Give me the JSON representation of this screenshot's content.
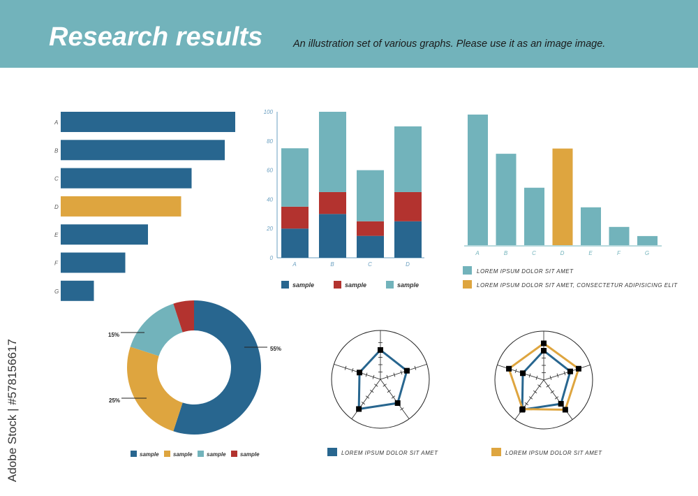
{
  "header": {
    "title": "Research results",
    "subtitle": "An illustration set of various graphs. Please use it as an image image."
  },
  "side_text": "Adobe Stock | #578156617",
  "colors": {
    "blue": "#28668f",
    "gold": "#dea53f",
    "teal": "#72b3bb",
    "red": "#b3332f"
  },
  "chart_data": [
    {
      "type": "bar",
      "orientation": "horizontal",
      "categories": [
        "A",
        "B",
        "C",
        "D",
        "E",
        "F",
        "G"
      ],
      "values": [
        100,
        94,
        75,
        69,
        50,
        37,
        19
      ],
      "highlight": "D"
    },
    {
      "type": "bar",
      "stacked": true,
      "categories": [
        "A",
        "B",
        "C",
        "D"
      ],
      "series": [
        {
          "name": "sample",
          "color": "blue",
          "values": [
            20,
            30,
            15,
            25
          ]
        },
        {
          "name": "sample",
          "color": "red",
          "values": [
            15,
            15,
            10,
            20
          ]
        },
        {
          "name": "sample",
          "color": "teal",
          "values": [
            40,
            55,
            35,
            45
          ]
        }
      ],
      "yticks": [
        "0",
        "20",
        "40",
        "60",
        "80",
        "100"
      ],
      "ylim": [
        0,
        100
      ]
    },
    {
      "type": "bar",
      "categories": [
        "A",
        "B",
        "C",
        "D",
        "E",
        "F",
        "G"
      ],
      "values": [
        100,
        70,
        44,
        74,
        29,
        14,
        7
      ],
      "colors": [
        "teal",
        "teal",
        "teal",
        "gold",
        "teal",
        "teal",
        "teal"
      ],
      "legend": [
        "LOREM IPSUM DOLOR SIT AMET",
        "LOREM IPSUM DOLOR SIT AMET, CONSECTETUR ADIPISICING ELIT"
      ]
    },
    {
      "type": "pie",
      "donut": true,
      "slices": [
        {
          "label": "sample",
          "value": 55,
          "text": "55%",
          "color": "blue"
        },
        {
          "label": "sample",
          "value": 25,
          "text": "25%",
          "color": "gold"
        },
        {
          "label": "sample",
          "value": 15,
          "text": "15%",
          "color": "teal"
        },
        {
          "label": "sample",
          "value": 5,
          "text": "",
          "color": "red"
        }
      ]
    },
    {
      "type": "radar",
      "max": 5,
      "series": [
        {
          "name": "LOREM IPSUM DOLOR SIT AMET",
          "color": "blue",
          "values": [
            4,
            3.8,
            4,
            5,
            3
          ]
        }
      ]
    },
    {
      "type": "radar",
      "max": 5,
      "series": [
        {
          "name": "LOREM IPSUM DOLOR SIT AMET",
          "color": "blue",
          "values": [
            4,
            3.8,
            4,
            5,
            3
          ],
          "legend": false
        },
        {
          "name": "LOREM IPSUM DOLOR SIT AMET",
          "color": "gold",
          "values": [
            5,
            5,
            5,
            4.9,
            5
          ]
        }
      ]
    }
  ]
}
